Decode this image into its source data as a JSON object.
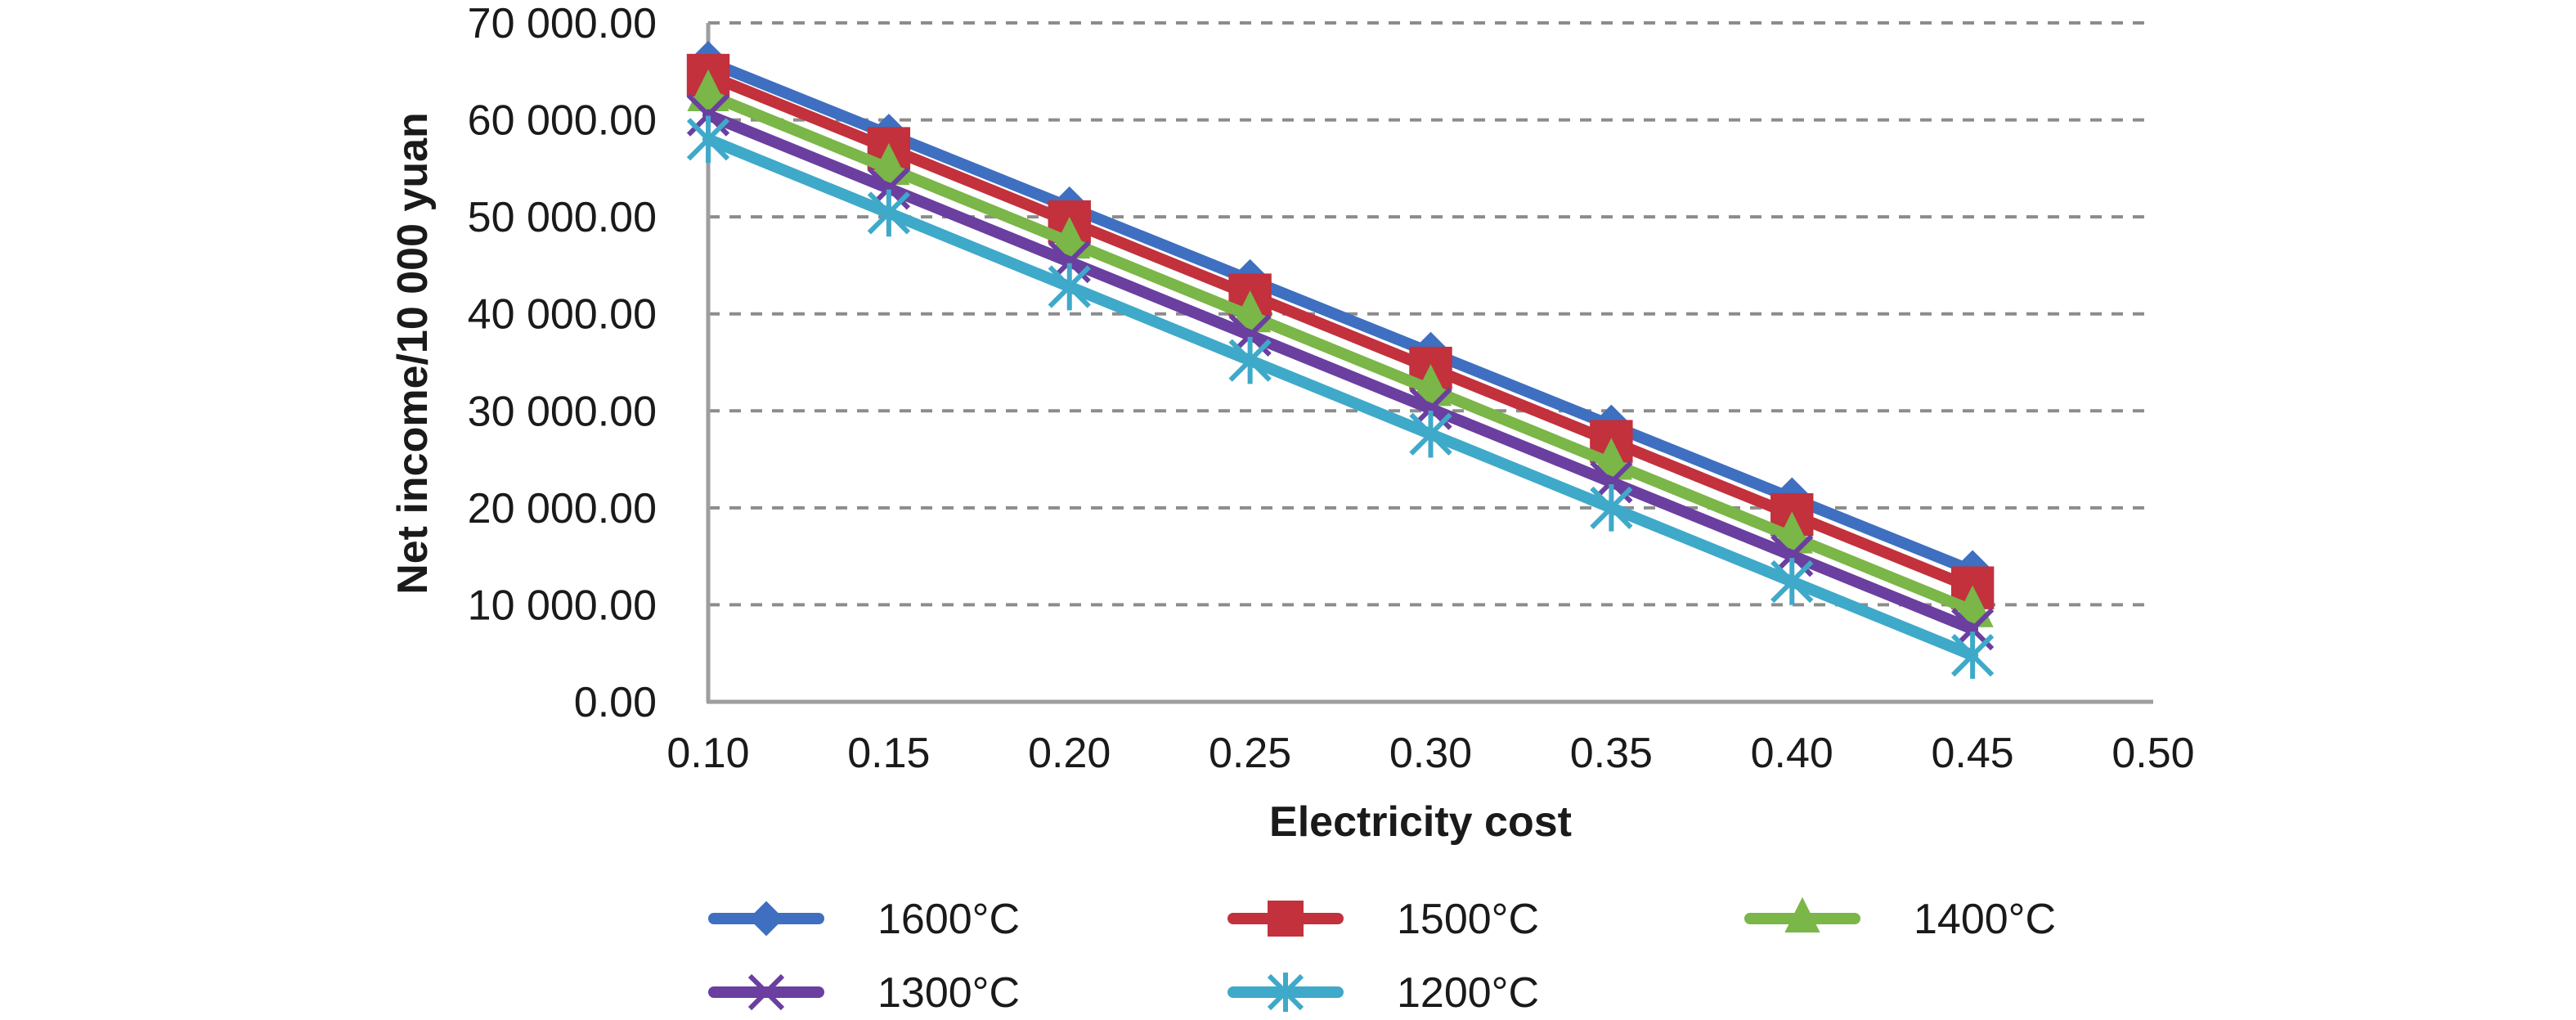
{
  "chart_data": {
    "type": "line",
    "title": "",
    "xlabel": "Electricity cost",
    "ylabel": "Net income/10 000 yuan",
    "x": [
      0.1,
      0.15,
      0.2,
      0.25,
      0.3,
      0.35,
      0.4,
      0.45
    ],
    "xlim": [
      0.1,
      0.5
    ],
    "ylim": [
      0,
      70000
    ],
    "x_ticks": [
      "0.10",
      "0.15",
      "0.20",
      "0.25",
      "0.30",
      "0.35",
      "0.40",
      "0.45",
      "0.50"
    ],
    "y_ticks": [
      "0.00",
      "10 000.00",
      "20 000.00",
      "30 000.00",
      "40 000.00",
      "50 000.00",
      "60 000.00",
      "70 000.00"
    ],
    "y_tick_values": [
      0,
      10000,
      20000,
      30000,
      40000,
      50000,
      60000,
      70000
    ],
    "x_tick_values": [
      0.1,
      0.15,
      0.2,
      0.25,
      0.3,
      0.35,
      0.4,
      0.45,
      0.5
    ],
    "grid": "horizontal dashed",
    "legend_position": "bottom",
    "series": [
      {
        "name": "1600°C",
        "color": "#3f6fc0",
        "marker": "diamond",
        "values": [
          66000,
          58500,
          51000,
          43500,
          36000,
          28500,
          21000,
          13500
        ]
      },
      {
        "name": "1500°C",
        "color": "#c2313c",
        "marker": "square",
        "values": [
          64600,
          57050,
          49500,
          41950,
          34400,
          26850,
          19300,
          11750
        ]
      },
      {
        "name": "1400°C",
        "color": "#7ab648",
        "marker": "triangle",
        "values": [
          62600,
          55000,
          47400,
          39800,
          32200,
          24600,
          17000,
          9400
        ]
      },
      {
        "name": "1300°C",
        "color": "#6a3fa0",
        "marker": "x",
        "values": [
          60500,
          52930,
          45360,
          37790,
          30220,
          22650,
          15080,
          7500
        ]
      },
      {
        "name": "1200°C",
        "color": "#3fa9c9",
        "marker": "star",
        "values": [
          58000,
          50400,
          42800,
          35200,
          27600,
          20000,
          12400,
          4800
        ]
      }
    ]
  }
}
